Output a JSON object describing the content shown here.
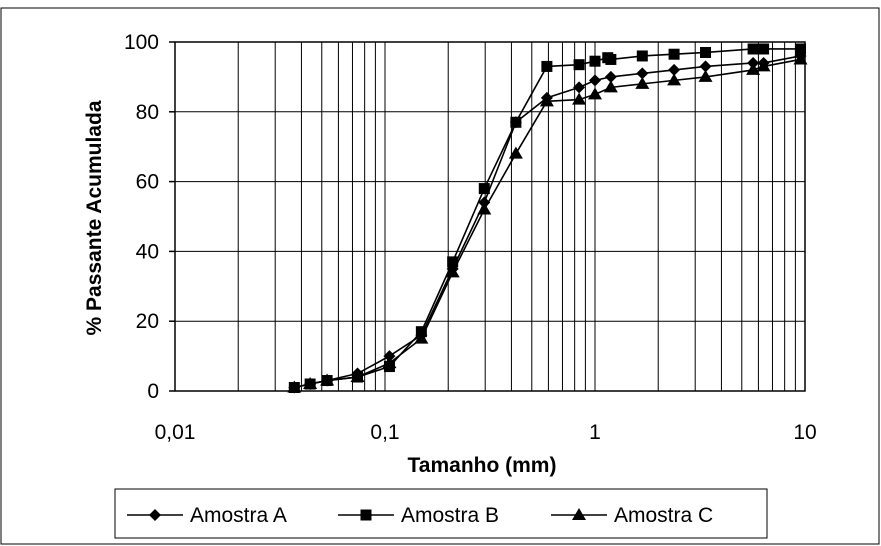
{
  "chart_data": {
    "type": "line",
    "xlabel": "Tamanho (mm)",
    "ylabel": "% Passante Acumulada",
    "x_scale": "log",
    "xlim": [
      0.01,
      10
    ],
    "ylim": [
      0,
      100
    ],
    "x_ticks": [
      0.01,
      0.1,
      1,
      10
    ],
    "x_tick_labels": [
      "0,01",
      "0,1",
      "1",
      "10"
    ],
    "y_ticks": [
      0,
      20,
      40,
      60,
      80,
      100
    ],
    "y_tick_labels": [
      "0",
      "20",
      "40",
      "60",
      "80",
      "100"
    ],
    "grid": true,
    "legend_position": "bottom",
    "series": [
      {
        "name": "Amostra A",
        "marker": "diamond",
        "x": [
          0.037,
          0.044,
          0.053,
          0.074,
          0.105,
          0.149,
          0.21,
          0.297,
          0.42,
          0.59,
          0.84,
          1.0,
          1.19,
          1.68,
          2.38,
          3.36,
          5.66,
          6.35,
          9.52
        ],
        "y": [
          1,
          2,
          3,
          5,
          10,
          16,
          35,
          54,
          77,
          84,
          87,
          89,
          90,
          91,
          92,
          93,
          94,
          94,
          96
        ]
      },
      {
        "name": "Amostra B",
        "marker": "square",
        "x": [
          0.037,
          0.044,
          0.053,
          0.074,
          0.105,
          0.149,
          0.21,
          0.297,
          0.42,
          0.59,
          0.84,
          1.0,
          1.15,
          1.19,
          1.68,
          2.38,
          3.36,
          5.66,
          6.35,
          9.52
        ],
        "y": [
          1,
          2,
          3,
          4,
          7,
          17,
          37,
          58,
          77,
          93,
          93.5,
          94.5,
          95.5,
          95,
          96,
          96.5,
          97,
          98,
          98,
          98
        ]
      },
      {
        "name": "Amostra C",
        "marker": "triangle",
        "x": [
          0.037,
          0.044,
          0.053,
          0.074,
          0.105,
          0.149,
          0.21,
          0.297,
          0.42,
          0.59,
          0.84,
          1.0,
          1.19,
          1.68,
          2.38,
          3.36,
          5.66,
          6.35,
          9.52
        ],
        "y": [
          1,
          2,
          3,
          4,
          8,
          15,
          34,
          52,
          68,
          83,
          83.5,
          85,
          87,
          88,
          89,
          90,
          92,
          93,
          95
        ]
      }
    ]
  }
}
